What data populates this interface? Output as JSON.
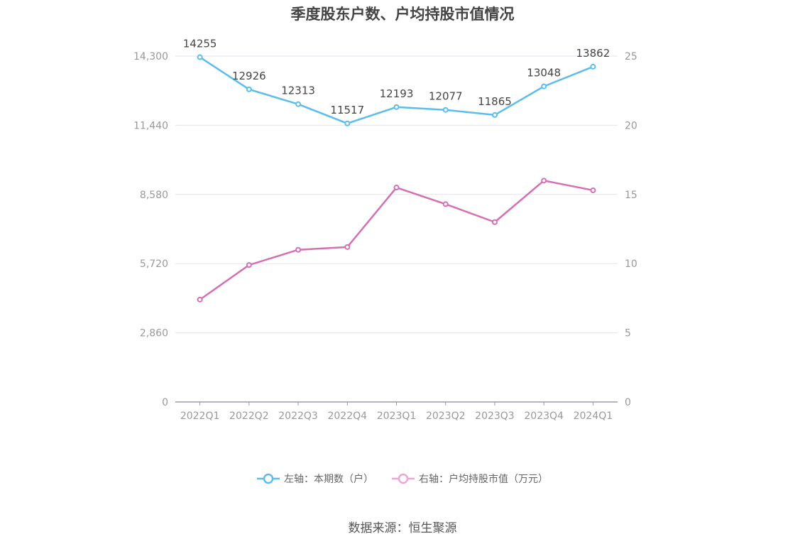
{
  "title": "季度股东户数、户均持股市值情况",
  "source_label": "数据来源：恒生聚源",
  "chart_data": {
    "type": "line",
    "categories": [
      "2022Q1",
      "2022Q2",
      "2022Q3",
      "2022Q4",
      "2023Q1",
      "2023Q2",
      "2023Q3",
      "2023Q4",
      "2024Q1"
    ],
    "left_axis": {
      "ylim": [
        0,
        14300
      ],
      "ticks": [
        0,
        2860,
        5720,
        8580,
        11440,
        14300
      ],
      "tick_labels": [
        "0",
        "2,860",
        "5,720",
        "8,580",
        "11,440",
        "14,300"
      ]
    },
    "right_axis": {
      "ylim": [
        0,
        25
      ],
      "ticks": [
        0,
        5,
        10,
        15,
        20,
        25
      ],
      "tick_labels": [
        "0",
        "5",
        "10",
        "15",
        "20",
        "25"
      ]
    },
    "series": [
      {
        "name": "左轴：本期数（户）",
        "axis": "left",
        "color": "#5bbdee",
        "legend_color": "#5bbdee",
        "values": [
          14255,
          12926,
          12313,
          11517,
          12193,
          12077,
          11865,
          13048,
          13862
        ],
        "show_labels": true
      },
      {
        "name": "右轴：户均持股市值（万元）",
        "axis": "right",
        "color": "#d56fb3",
        "legend_color": "#f0a6d2",
        "values": [
          7.4,
          9.9,
          11.0,
          11.2,
          15.5,
          14.3,
          13.0,
          16.0,
          15.3
        ],
        "show_labels": false
      }
    ],
    "grid": true,
    "legend_position": "bottom"
  }
}
